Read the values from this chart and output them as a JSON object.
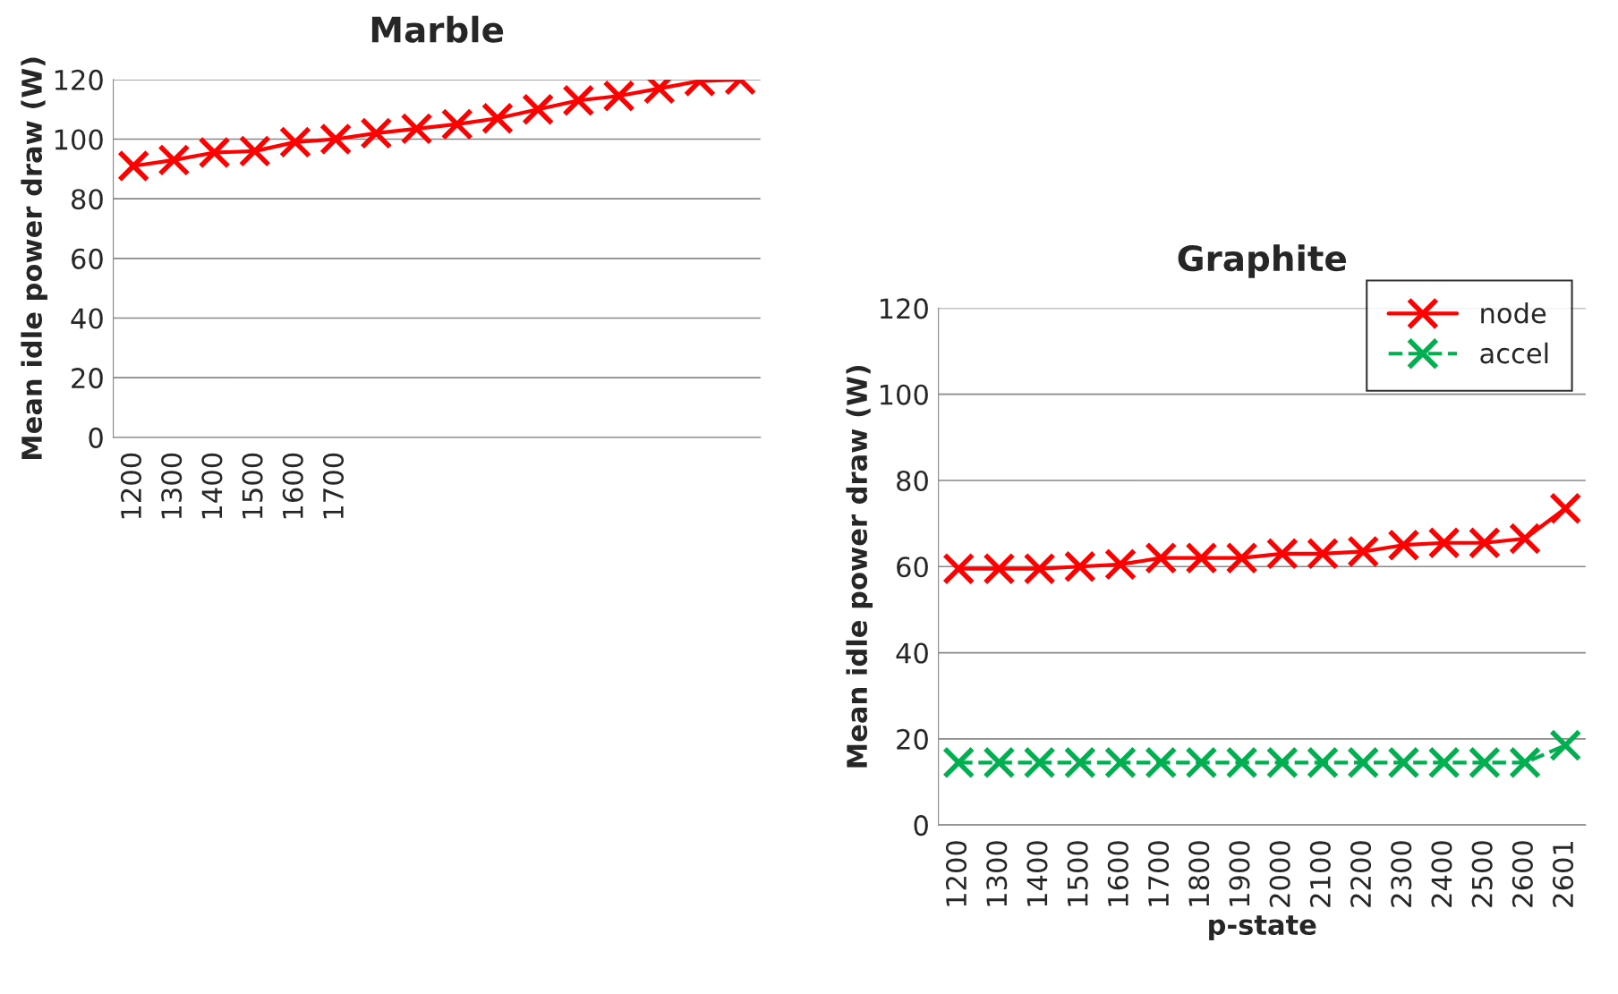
{
  "chart_data": [
    {
      "type": "line",
      "title": "Marble",
      "ylabel": "Mean idle power draw (W)",
      "categories": [
        "1200",
        "1300",
        "1400",
        "1500",
        "1600",
        "1700",
        null,
        null,
        null,
        null,
        null,
        null,
        null,
        null,
        null,
        null
      ],
      "series": [
        {
          "color": "#ff0000",
          "values": [
            91,
            93,
            95.5,
            96,
            99,
            100,
            102,
            103.5,
            105,
            107,
            110,
            113,
            114.5,
            117,
            119.5,
            120
          ]
        }
      ],
      "ylim": [
        0,
        120
      ],
      "yticks": [
        0,
        20,
        40,
        60,
        80,
        100,
        120
      ],
      "grid": "y",
      "marker": "cross",
      "line_style": "solid"
    },
    {
      "type": "line",
      "title": "Graphite",
      "ylabel": "Mean idle power draw (W)",
      "xlabel": "p-state",
      "categories": [
        "1200",
        "1300",
        "1400",
        "1500",
        "1600",
        "1700",
        "1800",
        "1900",
        "2000",
        "2100",
        "2200",
        "2300",
        "2400",
        "2500",
        "2600",
        "2601"
      ],
      "series": [
        {
          "name": "node",
          "color": "#ff0000",
          "line_style": "solid",
          "values": [
            59.5,
            59.5,
            59.5,
            60,
            60.5,
            62,
            62,
            62,
            63,
            63,
            63.5,
            65,
            65.5,
            65.5,
            66.5,
            73.5
          ]
        },
        {
          "name": "accel",
          "color": "#00b050",
          "line_style": "dashed",
          "values": [
            14.5,
            14.5,
            14.5,
            14.5,
            14.5,
            14.5,
            14.5,
            14.5,
            14.5,
            14.5,
            14.5,
            14.5,
            14.5,
            14.5,
            14.5,
            18.5
          ]
        }
      ],
      "ylim": [
        0,
        120
      ],
      "yticks": [
        0,
        20,
        40,
        60,
        80,
        100,
        120
      ],
      "grid": "y",
      "marker": "cross",
      "legend": "top right"
    }
  ]
}
